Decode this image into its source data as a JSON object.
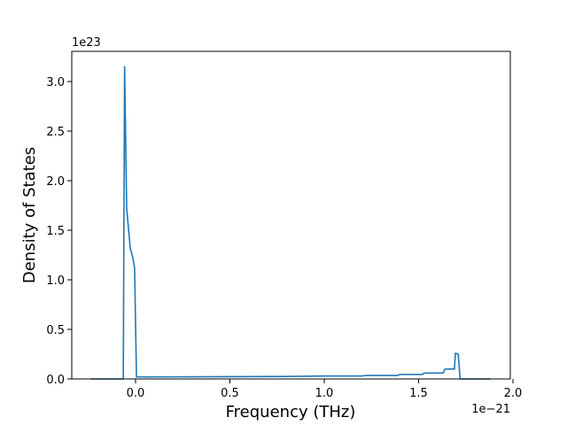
{
  "chart_data": {
    "type": "line",
    "xlabel": "Frequency (THz)",
    "ylabel": "Density of States",
    "x_offset_text": "1e−21",
    "y_offset_text": "1e23",
    "color": "#1f77b4",
    "grid": false,
    "x": [
      -0.24,
      -0.065,
      -0.058,
      -0.047,
      -0.028,
      -0.014,
      -0.005,
      0.005,
      0.3,
      0.8,
      1.0,
      1.2,
      1.22,
      1.39,
      1.4,
      1.52,
      1.53,
      1.63,
      1.64,
      1.69,
      1.695,
      1.71,
      1.72,
      1.88
    ],
    "values": [
      0,
      0,
      3.15,
      1.72,
      1.32,
      1.22,
      1.12,
      0.02,
      0.022,
      0.025,
      0.03,
      0.03,
      0.035,
      0.035,
      0.045,
      0.045,
      0.06,
      0.06,
      0.1,
      0.1,
      0.26,
      0.25,
      0,
      0
    ],
    "xlim": [
      -0.338,
      1.986
    ],
    "ylim": [
      0,
      3.304
    ],
    "xticks": [
      {
        "value": 0,
        "label": "0.0"
      },
      0.5,
      {
        "value": 1,
        "label": "1.0"
      },
      1.5,
      {
        "value": 2,
        "label": "2.0"
      }
    ],
    "yticks": [
      {
        "value": 0,
        "label": "0.0"
      },
      0.5,
      {
        "value": 1,
        "label": "1.0"
      },
      1.5,
      {
        "value": 2,
        "label": "2.0"
      },
      2.5,
      {
        "value": 3,
        "label": "3.0"
      }
    ]
  }
}
